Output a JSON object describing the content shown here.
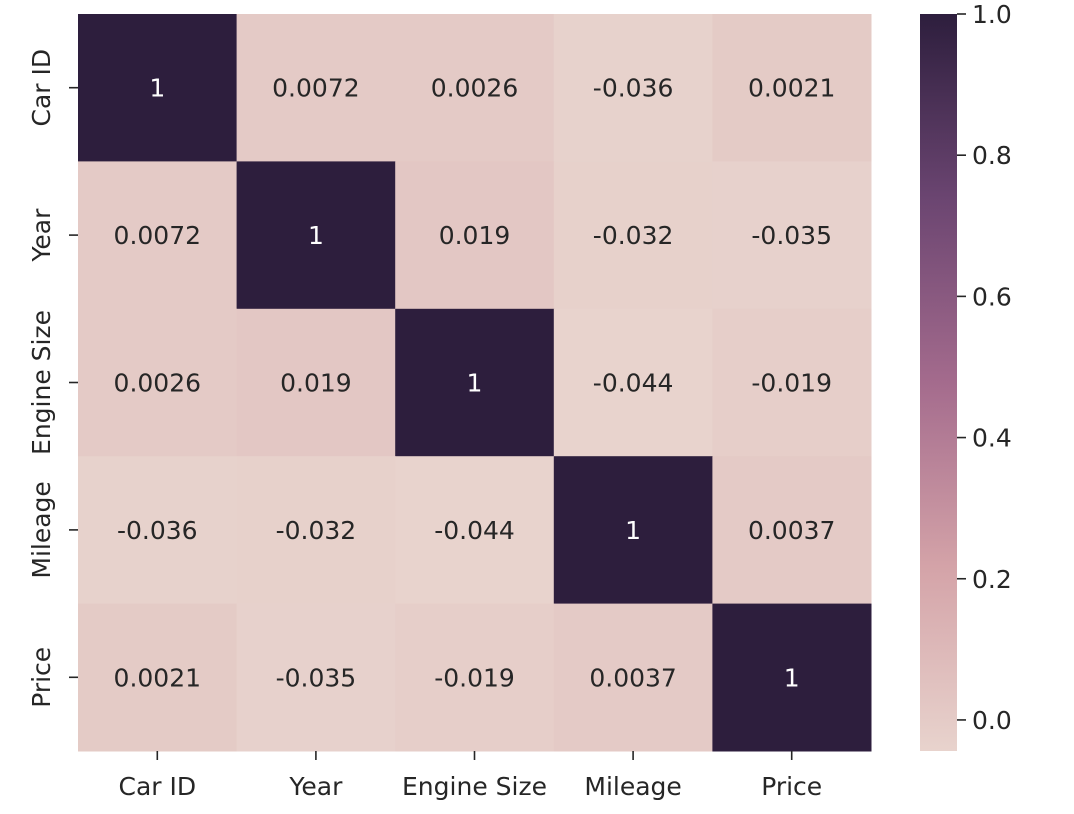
{
  "chart_data": {
    "type": "heatmap",
    "title": "",
    "xlabel": "",
    "ylabel": "",
    "x_categories": [
      "Car ID",
      "Year",
      "Engine Size",
      "Mileage",
      "Price"
    ],
    "y_categories": [
      "Car ID",
      "Year",
      "Engine Size",
      "Mileage",
      "Price"
    ],
    "values": [
      [
        1,
        0.0072,
        0.0026,
        -0.036,
        0.0021
      ],
      [
        0.0072,
        1,
        0.019,
        -0.032,
        -0.035
      ],
      [
        0.0026,
        0.019,
        1,
        -0.044,
        -0.019
      ],
      [
        -0.036,
        -0.032,
        -0.044,
        1,
        0.0037
      ],
      [
        0.0021,
        -0.035,
        -0.019,
        0.0037,
        1
      ]
    ],
    "annotations": [
      [
        "1",
        "0.0072",
        "0.0026",
        "-0.036",
        "0.0021"
      ],
      [
        "0.0072",
        "1",
        "0.019",
        "-0.032",
        "-0.035"
      ],
      [
        "0.0026",
        "0.019",
        "1",
        "-0.044",
        "-0.019"
      ],
      [
        "-0.036",
        "-0.032",
        "-0.044",
        "1",
        "0.0037"
      ],
      [
        "0.0021",
        "-0.035",
        "-0.019",
        "0.0037",
        "1"
      ]
    ],
    "colorbar": {
      "vmin": -0.044,
      "vmax": 1.0,
      "ticks": [
        0.0,
        0.2,
        0.4,
        0.6,
        0.8,
        1.0
      ],
      "tick_labels": [
        "0.0",
        "0.2",
        "0.4",
        "0.6",
        "0.8",
        "1.0"
      ]
    },
    "colormap": [
      "#e8d3cd",
      "#d4a3a8",
      "#a46b8d",
      "#6b4571",
      "#2d1e3d"
    ],
    "text_color_light": "#ffffff",
    "text_color_dark": "#262626"
  }
}
